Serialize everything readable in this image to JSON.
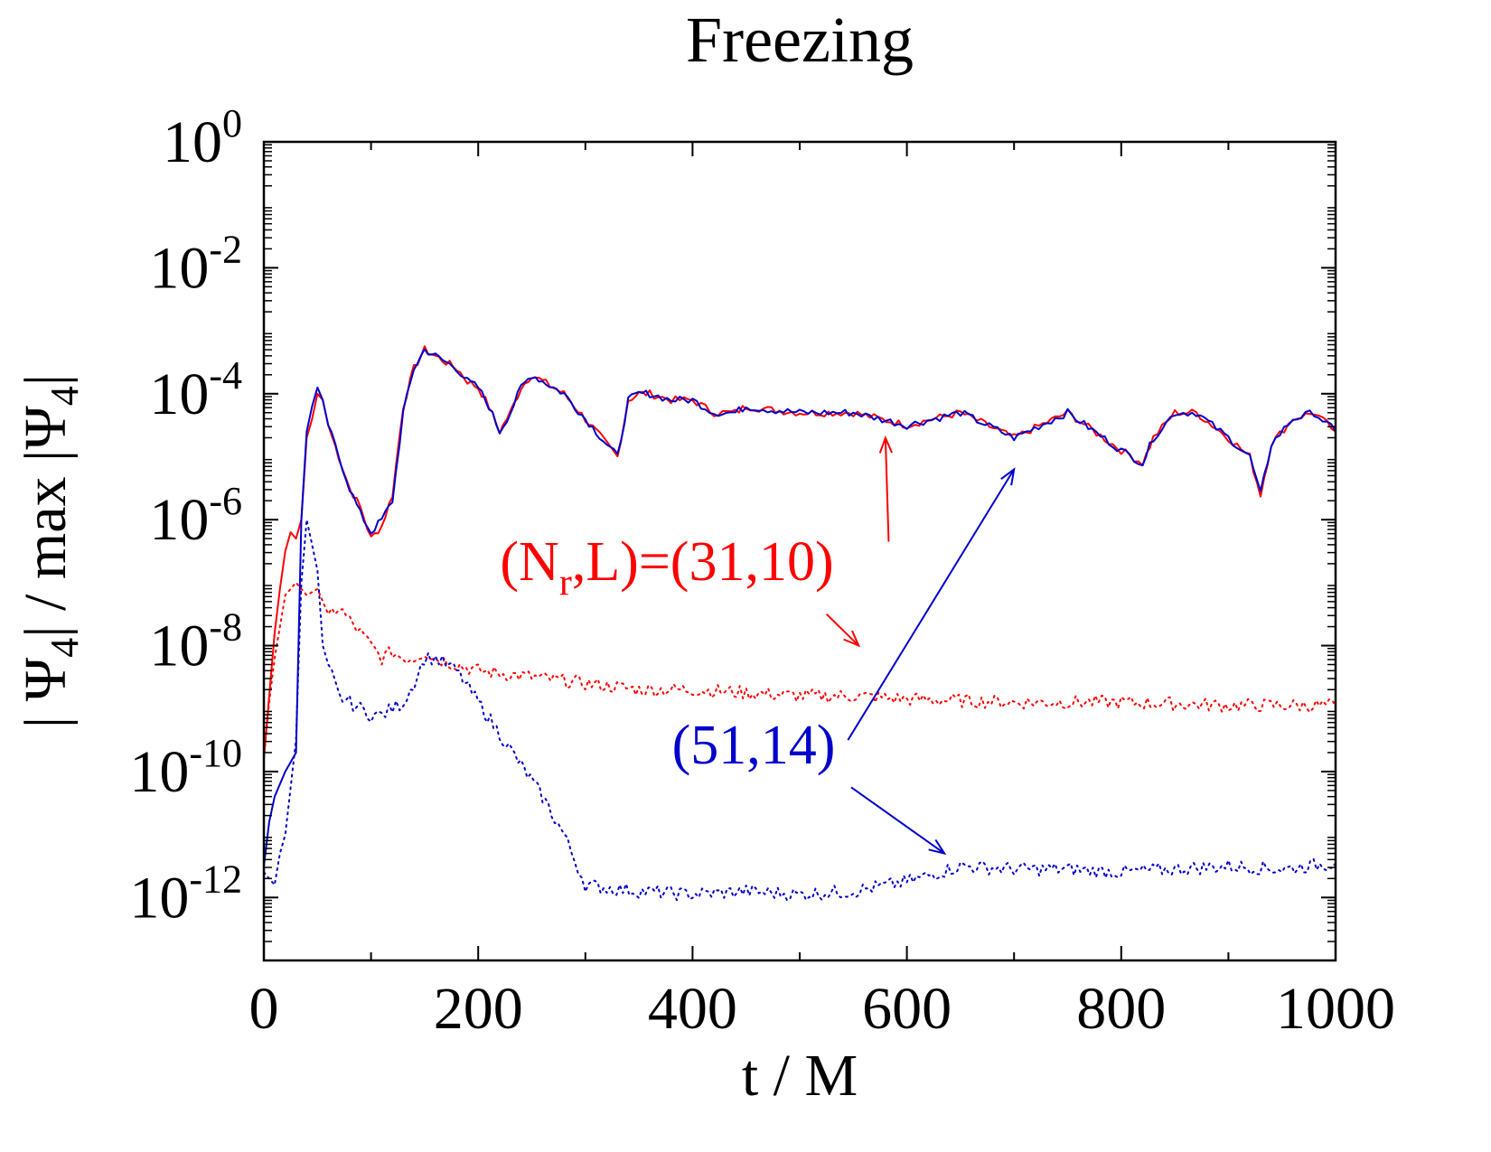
{
  "chart_data": {
    "type": "line",
    "title": "Freezing",
    "xlabel": "t / M",
    "ylabel": {
      "a": "| Ψ",
      "a_sub": "4",
      "b": "| / max |Ψ",
      "b_sub": "4",
      "c": "|"
    },
    "xlim": [
      0,
      1000
    ],
    "ylim_log10": [
      -13,
      0
    ],
    "y_scale": "log",
    "grid": false,
    "x_ticks": [
      0,
      200,
      400,
      600,
      800,
      1000
    ],
    "x_tick_labels": [
      "0",
      "200",
      "400",
      "600",
      "800",
      "1000"
    ],
    "y_ticks_log10": [
      0,
      -2,
      -4,
      -6,
      -8,
      -10,
      -12
    ],
    "y_tick_labels": [
      {
        "base": "10",
        "exp": "0"
      },
      {
        "base": "10",
        "exp": "-2"
      },
      {
        "base": "10",
        "exp": "-4"
      },
      {
        "base": "10",
        "exp": "-6"
      },
      {
        "base": "10",
        "exp": "-8"
      },
      {
        "base": "10",
        "exp": "-10"
      },
      {
        "base": "10",
        "exp": "-12"
      }
    ],
    "colors": {
      "red": "#ff0000",
      "blue": "#0000cc",
      "axis": "#000000"
    },
    "annotations": [
      {
        "id": "label-31-10",
        "text_pre": "(N",
        "text_sub": "r",
        "text_post": ",L)=(31,10)",
        "color": "#ff0000",
        "arrows": [
          {
            "from": [
              583,
              -6.35
            ],
            "to": [
              580,
              -4.7
            ]
          },
          {
            "from": [
              525,
              -7.5
            ],
            "to": [
              555,
              -8.0
            ]
          }
        ]
      },
      {
        "id": "label-51-14",
        "text_pre": "(51,14)",
        "text_sub": "",
        "text_post": "",
        "color": "#0000cc",
        "arrows": [
          {
            "from": [
              545,
              -9.5
            ],
            "to": [
              700,
              -5.2
            ]
          },
          {
            "from": [
              548,
              -10.25
            ],
            "to": [
              635,
              -11.3
            ]
          }
        ]
      }
    ],
    "series": [
      {
        "style": "solid",
        "color": "#ff0000",
        "x": [
          0,
          5,
          10,
          15,
          20,
          25,
          30,
          35,
          40,
          45,
          50,
          55,
          60,
          70,
          80,
          90,
          100,
          110,
          120,
          130,
          140,
          150,
          160,
          170,
          180,
          190,
          200,
          210,
          220,
          230,
          240,
          250,
          260,
          270,
          280,
          290,
          300,
          310,
          320,
          330,
          340,
          350,
          360,
          380,
          400,
          420,
          440,
          450,
          470,
          500,
          550,
          600,
          650,
          700,
          750,
          800,
          820,
          830,
          850,
          870,
          900,
          920,
          930,
          940,
          960,
          980,
          1000
        ],
        "y": [
          -9.8,
          -8.8,
          -7.8,
          -7.1,
          -6.5,
          -6.2,
          -6.3,
          -6.0,
          -4.7,
          -4.4,
          -4.0,
          -4.1,
          -4.5,
          -5.0,
          -5.5,
          -5.8,
          -6.3,
          -6.1,
          -5.6,
          -4.2,
          -3.6,
          -3.3,
          -3.4,
          -3.5,
          -3.6,
          -3.8,
          -3.9,
          -4.2,
          -4.6,
          -4.3,
          -3.9,
          -3.7,
          -3.8,
          -3.9,
          -4.0,
          -4.2,
          -4.4,
          -4.6,
          -4.8,
          -5.0,
          -4.1,
          -4.0,
          -4.0,
          -4.1,
          -4.1,
          -4.3,
          -4.3,
          -4.2,
          -4.25,
          -4.3,
          -4.3,
          -4.5,
          -4.3,
          -4.7,
          -4.3,
          -4.9,
          -5.1,
          -4.7,
          -4.3,
          -4.3,
          -4.7,
          -5.0,
          -5.6,
          -4.8,
          -4.4,
          -4.3,
          -4.6
        ]
      },
      {
        "style": "solid",
        "color": "#0000cc",
        "x": [
          0,
          5,
          10,
          20,
          30,
          35,
          40,
          45,
          50,
          55,
          60,
          70,
          80,
          90,
          100,
          110,
          120,
          130,
          140,
          150,
          160,
          170,
          180,
          190,
          200,
          210,
          220,
          230,
          240,
          250,
          260,
          270,
          280,
          290,
          300,
          310,
          320,
          330,
          340,
          350,
          360,
          380,
          400,
          420,
          440,
          450,
          470,
          500,
          550,
          600,
          650,
          700,
          750,
          800,
          820,
          830,
          850,
          870,
          900,
          920,
          930,
          940,
          960,
          980,
          1000
        ],
        "y": [
          -11.5,
          -10.8,
          -10.4,
          -10.0,
          -9.7,
          -6.0,
          -4.6,
          -4.2,
          -3.9,
          -4.1,
          -4.5,
          -5.0,
          -5.5,
          -5.9,
          -6.2,
          -6.0,
          -5.7,
          -4.3,
          -3.6,
          -3.3,
          -3.4,
          -3.5,
          -3.6,
          -3.8,
          -3.9,
          -4.2,
          -4.6,
          -4.3,
          -3.9,
          -3.7,
          -3.8,
          -3.9,
          -4.0,
          -4.2,
          -4.4,
          -4.6,
          -4.8,
          -5.0,
          -4.1,
          -4.0,
          -4.0,
          -4.1,
          -4.1,
          -4.3,
          -4.3,
          -4.2,
          -4.25,
          -4.3,
          -4.3,
          -4.5,
          -4.3,
          -4.7,
          -4.3,
          -4.9,
          -5.1,
          -4.7,
          -4.3,
          -4.3,
          -4.7,
          -5.0,
          -5.6,
          -4.8,
          -4.4,
          -4.3,
          -4.6
        ]
      },
      {
        "style": "dotted",
        "color": "#ff0000",
        "x": [
          0,
          5,
          10,
          20,
          30,
          40,
          50,
          60,
          70,
          80,
          90,
          100,
          110,
          120,
          130,
          140,
          150,
          160,
          180,
          200,
          250,
          300,
          350,
          400,
          450,
          500,
          550,
          600,
          700,
          800,
          900,
          1000
        ],
        "y": [
          -9.8,
          -8.9,
          -8.2,
          -7.2,
          -7.0,
          -7.2,
          -7.1,
          -7.5,
          -7.4,
          -7.6,
          -7.8,
          -8.0,
          -8.2,
          -8.1,
          -8.2,
          -8.2,
          -8.1,
          -8.2,
          -8.3,
          -8.4,
          -8.5,
          -8.6,
          -8.7,
          -8.7,
          -8.75,
          -8.8,
          -8.8,
          -8.85,
          -8.9,
          -8.9,
          -8.95,
          -8.95
        ]
      },
      {
        "style": "dotted",
        "color": "#0000cc",
        "x": [
          0,
          5,
          10,
          15,
          20,
          30,
          35,
          40,
          45,
          50,
          55,
          60,
          70,
          80,
          90,
          100,
          110,
          120,
          130,
          140,
          150,
          160,
          170,
          180,
          200,
          220,
          240,
          260,
          280,
          290,
          300,
          320,
          350,
          400,
          450,
          500,
          550,
          600,
          650,
          700,
          750,
          800,
          850,
          900,
          950,
          1000
        ],
        "y": [
          -11.6,
          -11.7,
          -11.8,
          -11.3,
          -11.0,
          -9.5,
          -7.0,
          -6.0,
          -6.4,
          -6.8,
          -8.0,
          -8.3,
          -8.8,
          -8.9,
          -9.0,
          -9.1,
          -9.1,
          -9.0,
          -8.9,
          -8.6,
          -8.2,
          -8.2,
          -8.3,
          -8.4,
          -8.9,
          -9.4,
          -9.9,
          -10.4,
          -11.0,
          -11.4,
          -11.8,
          -11.85,
          -11.9,
          -11.95,
          -11.9,
          -11.95,
          -11.9,
          -11.75,
          -11.5,
          -11.55,
          -11.55,
          -11.6,
          -11.55,
          -11.5,
          -11.55,
          -11.45
        ]
      }
    ]
  }
}
